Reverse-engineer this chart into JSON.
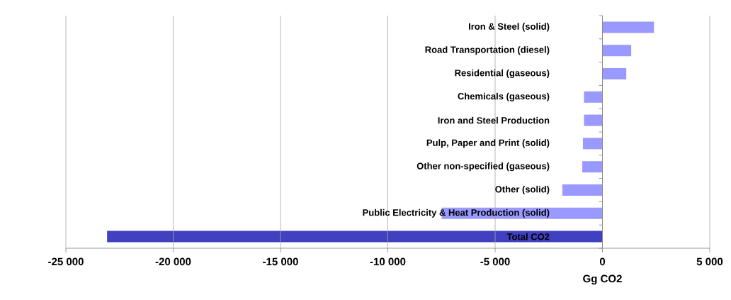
{
  "chart_data": {
    "type": "bar",
    "orientation": "horizontal",
    "xlabel": "Gg CO2",
    "categories": [
      "Iron & Steel (solid)",
      "Road Transportation (diesel)",
      "Residential (gaseous)",
      "Chemicals (gaseous)",
      "Iron and Steel Production",
      "Pulp, Paper and Print (solid)",
      "Other non-specified (gaseous)",
      "Other (solid)",
      "Public Electricity & Heat Production (solid)",
      "Total CO2"
    ],
    "values": [
      2400,
      1340,
      1110,
      -860,
      -860,
      -910,
      -940,
      -1870,
      -7490,
      -23080
    ],
    "colors": [
      "#9999ff",
      "#9999ff",
      "#9999ff",
      "#9999ff",
      "#9999ff",
      "#9999ff",
      "#9999ff",
      "#9999ff",
      "#9999ff",
      "#4040c0"
    ],
    "xlim": [
      -25000,
      5000
    ],
    "xticks": [
      {
        "value": -25000,
        "label": "-25 000"
      },
      {
        "value": -20000,
        "label": "-20 000"
      },
      {
        "value": -15000,
        "label": "-15 000"
      },
      {
        "value": -10000,
        "label": "-10 000"
      },
      {
        "value": -5000,
        "label": "-5 000"
      },
      0,
      {
        "value": 5000,
        "label": "5 000"
      }
    ],
    "grid": "x"
  }
}
